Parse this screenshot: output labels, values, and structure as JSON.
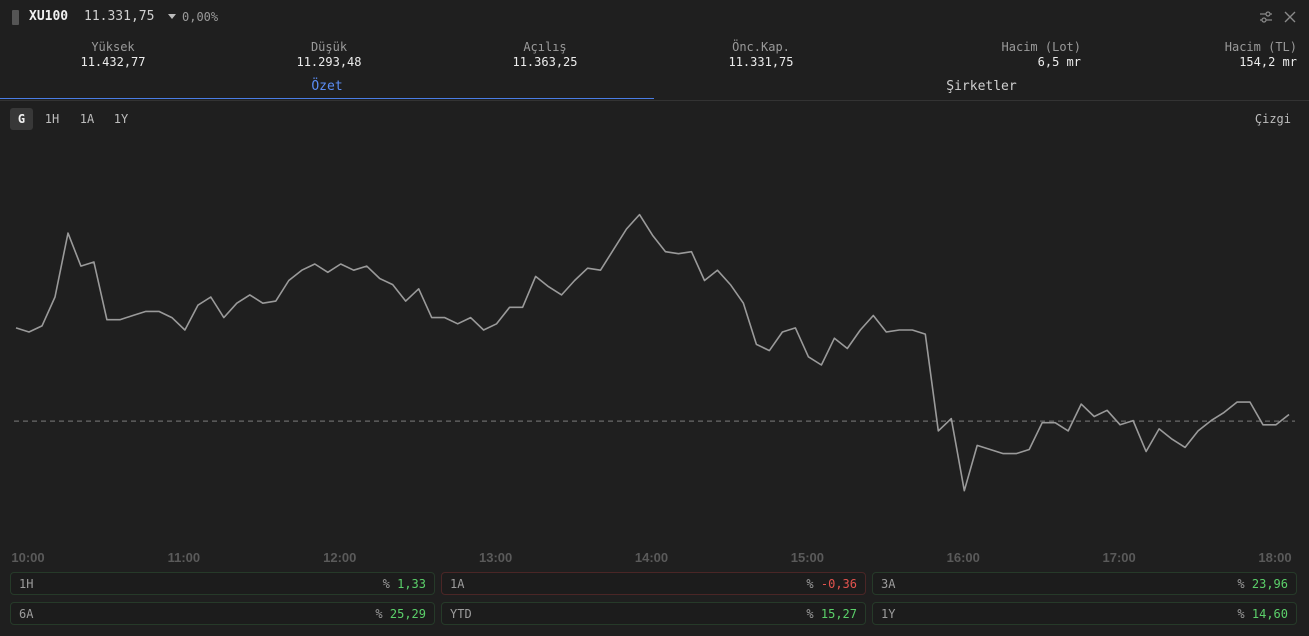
{
  "header": {
    "symbol": "XU100",
    "price": "11.331,75",
    "change": "0,00%",
    "icons": {
      "settings": "sliders-icon",
      "close": "close-icon",
      "change_direction": "caret-down-icon"
    }
  },
  "stats": [
    {
      "label": "Yüksek",
      "value": "11.432,77"
    },
    {
      "label": "Düşük",
      "value": "11.293,48"
    },
    {
      "label": "Açılış",
      "value": "11.363,25"
    },
    {
      "label": "Önc.Kap.",
      "value": "11.331,75"
    },
    {
      "label": "Hacim (Lot)",
      "value": "6,5 mr"
    },
    {
      "label": "Hacim (TL)",
      "value": "154,2 mr"
    }
  ],
  "tabs": [
    {
      "label": "Özet",
      "active": true
    },
    {
      "label": "Şirketler",
      "active": false
    }
  ],
  "ranges": [
    {
      "label": "G",
      "active": true
    },
    {
      "label": "1H",
      "active": false
    },
    {
      "label": "1A",
      "active": false
    },
    {
      "label": "1Y",
      "active": false
    }
  ],
  "chart_type_label": "Çizgi",
  "chart_data": {
    "type": "line",
    "x_ticks": [
      "10:00",
      "11:00",
      "12:00",
      "13:00",
      "14:00",
      "15:00",
      "16:00",
      "17:00",
      "18:00"
    ],
    "reference_line": 11331.75,
    "ylim": [
      11293.48,
      11432.77
    ],
    "line_color": "#9a9a9a",
    "reference_color": "#6a6a6a",
    "series": [
      {
        "values": [
          11377,
          11375,
          11378,
          11392,
          11423,
          11407,
          11409,
          11381,
          11381,
          11383,
          11385,
          11385,
          11382,
          11376,
          11388,
          11392,
          11382,
          11389,
          11393,
          11389,
          11390,
          11400,
          11405,
          11408,
          11404,
          11408,
          11405,
          11407,
          11401,
          11398,
          11390,
          11396,
          11382,
          11382,
          11379,
          11382,
          11376,
          11379,
          11387,
          11387,
          11402,
          11397,
          11393,
          11400,
          11406,
          11405,
          11415,
          11425,
          11432,
          11422,
          11414,
          11413,
          11414,
          11400,
          11405,
          11398,
          11389,
          11369,
          11366,
          11375,
          11377,
          11363,
          11359,
          11372,
          11367,
          11376,
          11383,
          11375,
          11376,
          11376,
          11374,
          11327,
          11333,
          11298,
          11320,
          11318,
          11316,
          11316,
          11318,
          11331,
          11331,
          11327,
          11340,
          11334,
          11337,
          11330,
          11332,
          11317,
          11328,
          11323,
          11319,
          11327,
          11332,
          11336,
          11341,
          11341,
          11330,
          11330,
          11335
        ]
      }
    ]
  },
  "performance": [
    {
      "label": "1H",
      "prefix": "%",
      "value": "1,33",
      "trend": "up"
    },
    {
      "label": "1A",
      "prefix": "%",
      "value": "-0,36",
      "trend": "down"
    },
    {
      "label": "3A",
      "prefix": "%",
      "value": "23,96",
      "trend": "up"
    },
    {
      "label": "6A",
      "prefix": "%",
      "value": "25,29",
      "trend": "up"
    },
    {
      "label": "YTD",
      "prefix": "%",
      "value": "15,27",
      "trend": "up"
    },
    {
      "label": "1Y",
      "prefix": "%",
      "value": "14,60",
      "trend": "up"
    }
  ]
}
